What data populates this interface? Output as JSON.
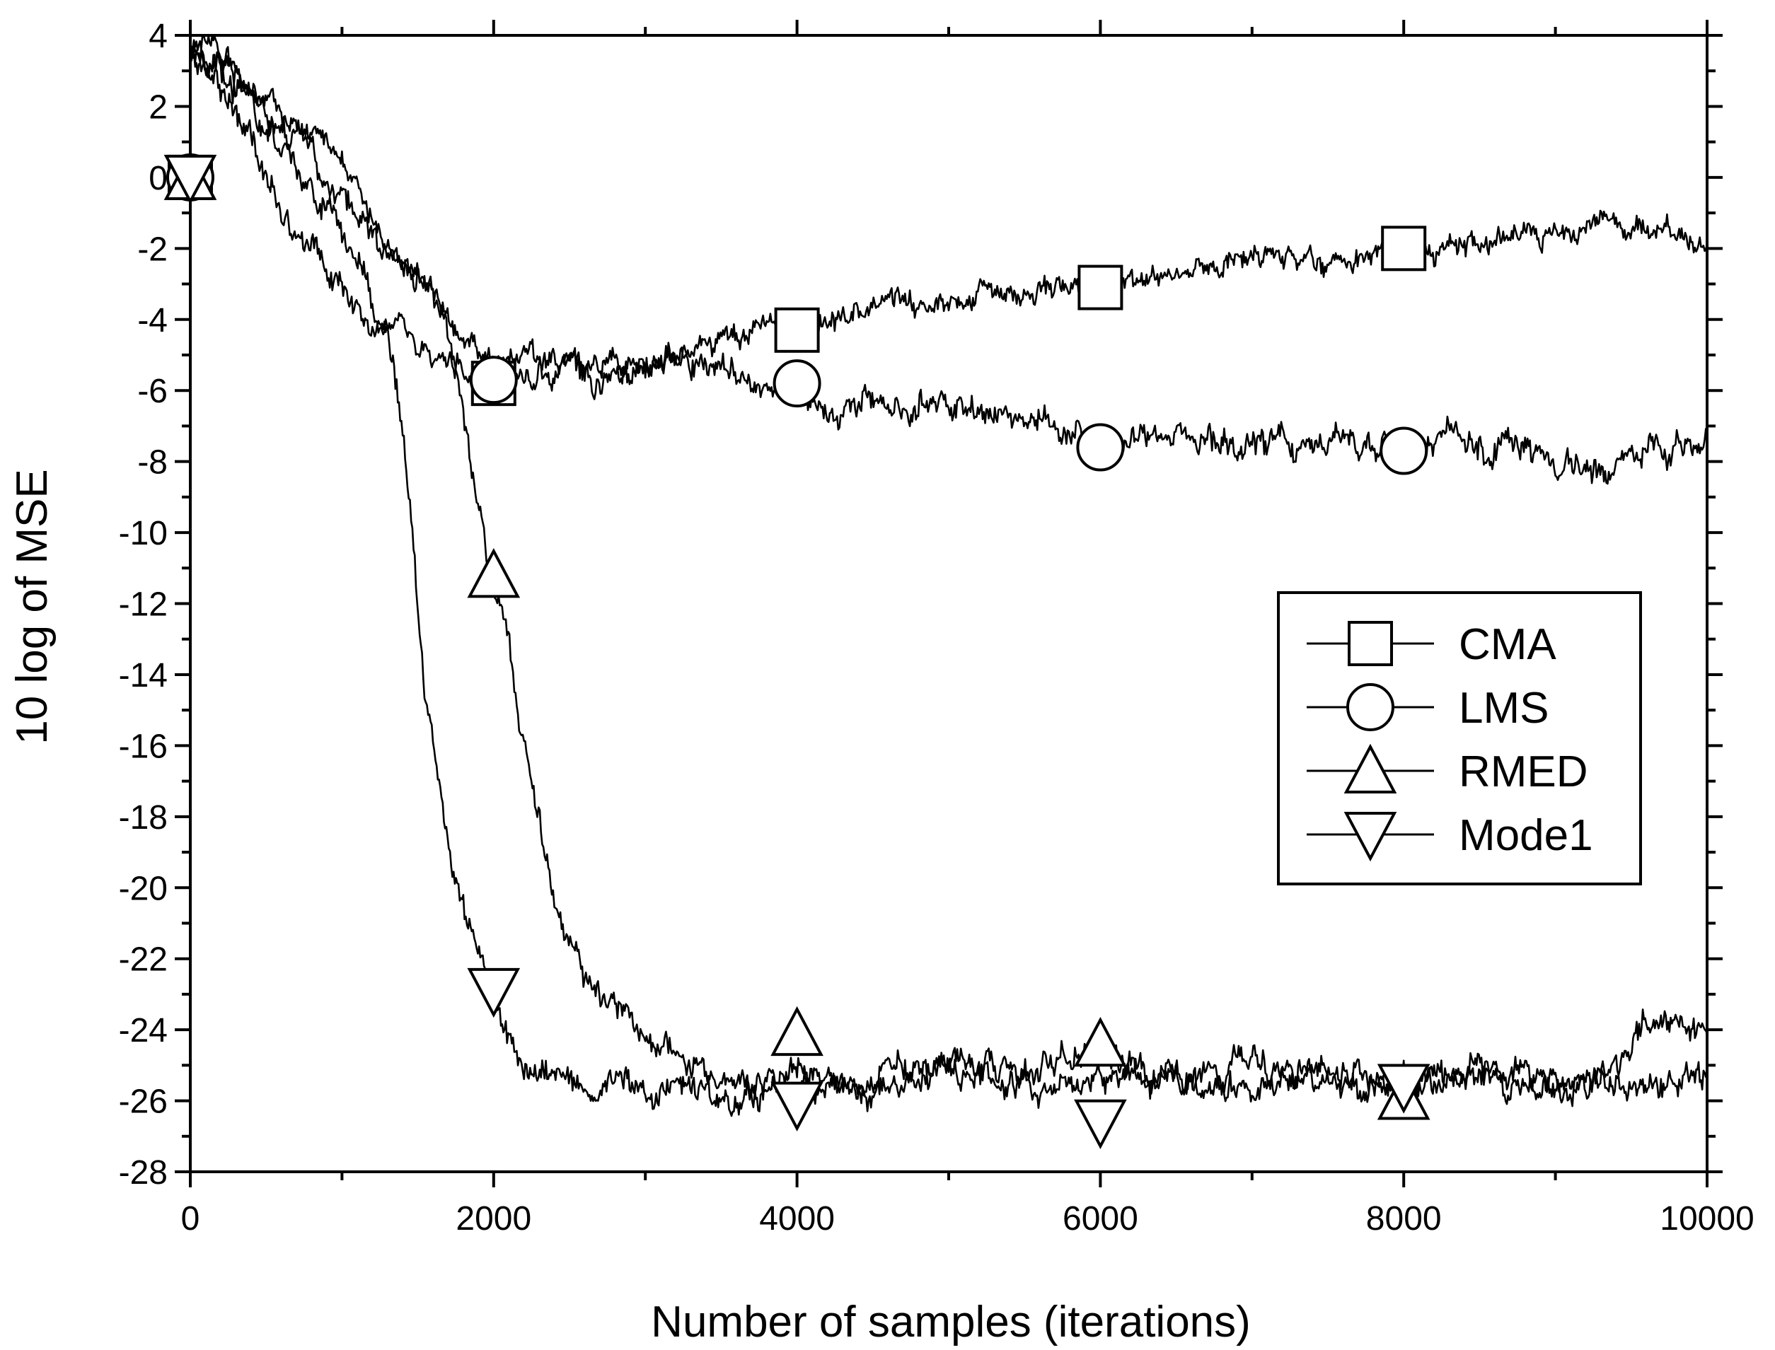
{
  "chart_data": {
    "type": "line",
    "title": "",
    "xlabel": "Number of samples (iterations)",
    "ylabel": "10 log of MSE",
    "xlim": [
      0,
      10000
    ],
    "ylim": [
      -28,
      4
    ],
    "x_ticks": [
      0,
      2000,
      4000,
      6000,
      8000,
      10000
    ],
    "x_tick_labels": [
      "0",
      "2000",
      "4000",
      "6000",
      "8000",
      "10000"
    ],
    "x_minor_step": 1000,
    "y_ticks": [
      4,
      2,
      0,
      -2,
      -4,
      -6,
      -8,
      -10,
      -12,
      -14,
      -16,
      -18,
      -20,
      -22,
      -24,
      -26,
      -28
    ],
    "y_tick_labels": [
      "4",
      "2",
      "0",
      "-2",
      "-4",
      "-6",
      "-8",
      "-10",
      "-12",
      "-14",
      "-16",
      "-18",
      "-20",
      "-22",
      "-24",
      "-26",
      "-28"
    ],
    "y_minor_step": 1,
    "grid": false,
    "legend_position": "right-center",
    "series": [
      {
        "name": "CMA",
        "marker": "square",
        "points": [
          [
            0,
            3.5
          ],
          [
            100,
            3.3
          ],
          [
            200,
            3.5
          ],
          [
            400,
            2.4
          ],
          [
            700,
            1.6
          ],
          [
            1000,
            0.4
          ],
          [
            1300,
            -1.7
          ],
          [
            1500,
            -3.0
          ],
          [
            1700,
            -3.6
          ],
          [
            1800,
            -4.4
          ],
          [
            2000,
            -5.3
          ],
          [
            2200,
            -5.0
          ],
          [
            2500,
            -5.3
          ],
          [
            2800,
            -5.3
          ],
          [
            3200,
            -5.0
          ],
          [
            3500,
            -4.6
          ],
          [
            3800,
            -4.2
          ],
          [
            4000,
            -4.3
          ],
          [
            4300,
            -3.9
          ],
          [
            4700,
            -3.6
          ],
          [
            5000,
            -3.5
          ],
          [
            5500,
            -3.2
          ],
          [
            6000,
            -3.0
          ],
          [
            6500,
            -2.8
          ],
          [
            7000,
            -2.4
          ],
          [
            7500,
            -2.3
          ],
          [
            8000,
            -2.0
          ],
          [
            8500,
            -1.8
          ],
          [
            9000,
            -1.6
          ],
          [
            9300,
            -1.2
          ],
          [
            9600,
            -1.5
          ],
          [
            10000,
            -1.7
          ]
        ],
        "markers": [
          [
            0,
            0
          ],
          [
            2000,
            -5.8
          ],
          [
            4000,
            -4.3
          ],
          [
            6000,
            -3.1
          ],
          [
            8000,
            -2.0
          ]
        ]
      },
      {
        "name": "LMS",
        "marker": "circle",
        "points": [
          [
            0,
            3.6
          ],
          [
            150,
            3.0
          ],
          [
            300,
            2.0
          ],
          [
            500,
            0.0
          ],
          [
            700,
            -1.6
          ],
          [
            1000,
            -3.1
          ],
          [
            1200,
            -4.1
          ],
          [
            1500,
            -4.9
          ],
          [
            1800,
            -5.3
          ],
          [
            2000,
            -5.5
          ],
          [
            2300,
            -5.4
          ],
          [
            2700,
            -5.5
          ],
          [
            3000,
            -5.3
          ],
          [
            3400,
            -5.2
          ],
          [
            3600,
            -5.8
          ],
          [
            4000,
            -6.1
          ],
          [
            4300,
            -6.3
          ],
          [
            4700,
            -6.5
          ],
          [
            5000,
            -6.3
          ],
          [
            5400,
            -6.7
          ],
          [
            5800,
            -7.1
          ],
          [
            6000,
            -7.5
          ],
          [
            6500,
            -7.3
          ],
          [
            7000,
            -7.6
          ],
          [
            7500,
            -7.5
          ],
          [
            8000,
            -7.6
          ],
          [
            8500,
            -7.6
          ],
          [
            9000,
            -8.0
          ],
          [
            9300,
            -8.3
          ],
          [
            9700,
            -7.6
          ],
          [
            10000,
            -7.2
          ]
        ],
        "markers": [
          [
            0,
            0
          ],
          [
            2000,
            -5.7
          ],
          [
            4000,
            -5.8
          ],
          [
            6000,
            -7.6
          ],
          [
            8000,
            -7.7
          ]
        ]
      },
      {
        "name": "RMED",
        "marker": "triangle-up",
        "points": [
          [
            0,
            3.6
          ],
          [
            200,
            3.0
          ],
          [
            500,
            1.7
          ],
          [
            800,
            0.6
          ],
          [
            1000,
            -0.4
          ],
          [
            1200,
            -1.6
          ],
          [
            1400,
            -2.4
          ],
          [
            1600,
            -3.5
          ],
          [
            1700,
            -4.2
          ],
          [
            1800,
            -7.0
          ],
          [
            1900,
            -9.3
          ],
          [
            2000,
            -11.2
          ],
          [
            2100,
            -13.0
          ],
          [
            2200,
            -16.0
          ],
          [
            2400,
            -20.5
          ],
          [
            2600,
            -22.4
          ],
          [
            2800,
            -23.5
          ],
          [
            3000,
            -24.2
          ],
          [
            3300,
            -25.1
          ],
          [
            3500,
            -26.1
          ],
          [
            3800,
            -25.9
          ],
          [
            4000,
            -25.6
          ],
          [
            4500,
            -25.2
          ],
          [
            5000,
            -24.9
          ],
          [
            5500,
            -25.1
          ],
          [
            6000,
            -24.6
          ],
          [
            6500,
            -25.4
          ],
          [
            7000,
            -24.8
          ],
          [
            7500,
            -25.3
          ],
          [
            8000,
            -25.4
          ],
          [
            8500,
            -25.0
          ],
          [
            9000,
            -25.6
          ],
          [
            9500,
            -24.7
          ],
          [
            9700,
            -23.4
          ],
          [
            10000,
            -24.6
          ]
        ],
        "markers": [
          [
            0,
            0
          ],
          [
            2000,
            -11.2
          ],
          [
            4000,
            -24.1
          ],
          [
            6000,
            -24.4
          ],
          [
            8000,
            -25.9
          ]
        ]
      },
      {
        "name": "Mode1",
        "marker": "triangle-down",
        "points": [
          [
            0,
            3.6
          ],
          [
            100,
            3.9
          ],
          [
            300,
            2.9
          ],
          [
            500,
            1.3
          ],
          [
            800,
            -0.2
          ],
          [
            1000,
            -1.6
          ],
          [
            1200,
            -3.3
          ],
          [
            1350,
            -5.5
          ],
          [
            1450,
            -9.5
          ],
          [
            1550,
            -14.5
          ],
          [
            1650,
            -17.0
          ],
          [
            1750,
            -19.5
          ],
          [
            1850,
            -21.2
          ],
          [
            1950,
            -22.6
          ],
          [
            2050,
            -23.8
          ],
          [
            2200,
            -25.2
          ],
          [
            2400,
            -25.5
          ],
          [
            2600,
            -25.6
          ],
          [
            3000,
            -25.7
          ],
          [
            3500,
            -25.4
          ],
          [
            4000,
            -25.4
          ],
          [
            4500,
            -25.7
          ],
          [
            5000,
            -25.2
          ],
          [
            5300,
            -25.6
          ],
          [
            5800,
            -25.3
          ],
          [
            6000,
            -25.3
          ],
          [
            6500,
            -25.4
          ],
          [
            7000,
            -25.5
          ],
          [
            7500,
            -25.3
          ],
          [
            8000,
            -25.6
          ],
          [
            8500,
            -25.3
          ],
          [
            9000,
            -25.7
          ],
          [
            9500,
            -25.5
          ],
          [
            10000,
            -25.4
          ]
        ],
        "markers": [
          [
            0,
            0
          ],
          [
            2000,
            -22.9
          ],
          [
            4000,
            -26.1
          ],
          [
            6000,
            -26.6
          ],
          [
            8000,
            -25.6
          ]
        ]
      }
    ]
  }
}
